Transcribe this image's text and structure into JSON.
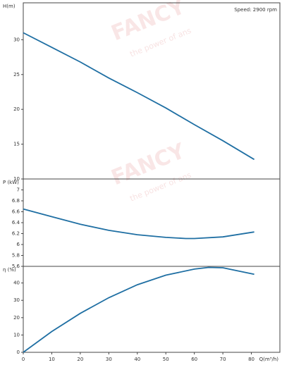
{
  "watermark": {
    "brand": "FANCY",
    "slogan": "the power of ans"
  },
  "chart_data": [
    {
      "type": "line",
      "ylabel": "H(m)",
      "annotation": "Speed: 2900 rpm",
      "xlim": [
        0,
        90
      ],
      "ylim": [
        10,
        35.3
      ],
      "yticks": [
        10,
        15,
        20,
        25,
        30
      ],
      "series": [
        {
          "name": "H",
          "color": "#1f6fa3",
          "x": [
            0,
            10,
            20,
            30,
            40,
            50,
            60,
            70,
            81
          ],
          "values": [
            31.0,
            28.9,
            26.8,
            24.5,
            22.4,
            20.2,
            17.8,
            15.5,
            12.8
          ]
        }
      ]
    },
    {
      "type": "line",
      "ylabel": "P (kW)",
      "xlim": [
        0,
        90
      ],
      "ylim": [
        5.6,
        7.2
      ],
      "yticks": [
        5.6,
        5.8,
        6,
        6.2,
        6.4,
        6.6,
        6.8,
        7
      ],
      "series": [
        {
          "name": "P",
          "color": "#1f6fa3",
          "x": [
            0,
            10,
            20,
            30,
            40,
            50,
            57,
            60,
            70,
            81
          ],
          "values": [
            6.65,
            6.51,
            6.37,
            6.26,
            6.18,
            6.13,
            6.11,
            6.11,
            6.14,
            6.23
          ]
        }
      ]
    },
    {
      "type": "line",
      "ylabel": "η (%)",
      "xlabel": "Q(m³/h)",
      "xlim": [
        0,
        90
      ],
      "ylim": [
        0,
        49.6
      ],
      "yticks": [
        0,
        10,
        20,
        30,
        40
      ],
      "xticks": [
        0,
        10,
        20,
        30,
        40,
        50,
        60,
        70,
        80
      ],
      "series": [
        {
          "name": "η",
          "color": "#1f6fa3",
          "x": [
            0,
            10,
            20,
            30,
            40,
            50,
            60,
            65,
            70,
            81
          ],
          "values": [
            0,
            12,
            22.5,
            31.5,
            39,
            44.5,
            48,
            49,
            48.8,
            45
          ]
        }
      ]
    }
  ]
}
